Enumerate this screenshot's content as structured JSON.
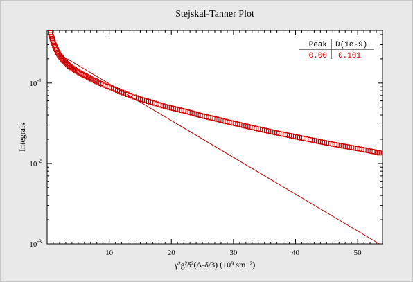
{
  "chart_data": {
    "type": "scatter",
    "title": "Stejskal-Tanner Plot",
    "xlabel": "γ²g²δ²(Δ-δ/3) (10⁹ sm⁻²)",
    "ylabel": "Integrals",
    "xlim": [
      0,
      54
    ],
    "ylim": [
      0.001,
      0.45
    ],
    "yscale": "log",
    "x_ticks": [
      10,
      20,
      30,
      40,
      50
    ],
    "y_tick_labels": [
      {
        "value": 0.1,
        "base": "10",
        "exp": "-1"
      },
      {
        "value": 0.01,
        "base": "10",
        "exp": "-2"
      },
      {
        "value": 0.001,
        "base": "10",
        "exp": "-3"
      }
    ],
    "series": [
      {
        "kind": "markers",
        "marker": "open-square",
        "color": "#cc0000",
        "x": [
          0.5,
          0.8,
          1.0,
          1.3,
          1.6,
          2.0,
          2.4,
          2.8,
          3.3,
          3.8,
          4.4,
          5.0,
          5.7,
          6.4,
          7.2,
          8.0,
          9.0,
          10.0,
          11.0,
          12.0,
          13.0,
          14.0,
          15.0,
          16.0,
          17.0,
          18.0,
          19.0,
          20.0,
          21.0,
          22.0,
          23.0,
          24.0,
          25.0,
          26.0,
          27.0,
          28.0,
          29.0,
          30.0,
          31.0,
          32.0,
          33.0,
          34.0,
          35.0,
          36.0,
          37.0,
          38.0,
          39.0,
          40.0,
          41.0,
          42.0,
          43.0,
          44.0,
          45.0,
          46.0,
          47.0,
          48.0,
          49.0,
          50.0,
          51.0,
          52.0,
          53.0,
          53.5
        ],
        "y": [
          0.42,
          0.36,
          0.32,
          0.28,
          0.25,
          0.22,
          0.2,
          0.185,
          0.17,
          0.158,
          0.147,
          0.137,
          0.128,
          0.12,
          0.112,
          0.104,
          0.096,
          0.089,
          0.083,
          0.077,
          0.072,
          0.067,
          0.063,
          0.06,
          0.057,
          0.054,
          0.051,
          0.049,
          0.047,
          0.045,
          0.043,
          0.041,
          0.039,
          0.0375,
          0.036,
          0.0345,
          0.033,
          0.0317,
          0.0304,
          0.0292,
          0.028,
          0.0269,
          0.0259,
          0.0249,
          0.024,
          0.0231,
          0.0223,
          0.0215,
          0.0207,
          0.02,
          0.0193,
          0.0186,
          0.018,
          0.0174,
          0.0168,
          0.0163,
          0.0158,
          0.0153,
          0.0148,
          0.0143,
          0.0138,
          0.0135
        ]
      },
      {
        "kind": "fit-line",
        "color": "#b00000",
        "x": [
          1.5,
          53.5
        ],
        "y": [
          0.24,
          0.001
        ]
      }
    ],
    "table": {
      "headers": [
        "Peak",
        "D(1e-9)"
      ],
      "rows": [
        [
          "0.00",
          "0.101"
        ]
      ],
      "placement": "top-right"
    },
    "grid": false
  }
}
